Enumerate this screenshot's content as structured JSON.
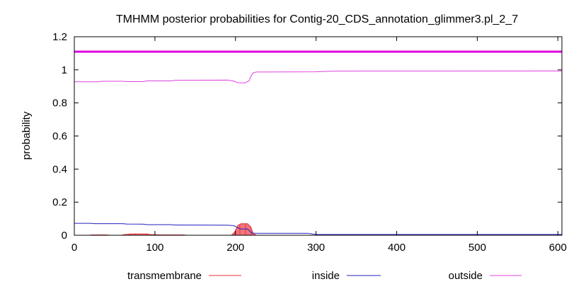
{
  "chart_data": {
    "type": "line",
    "title": "TMHMM posterior probabilities for Contig-20_CDS_annotation_glimmer3.pl_2_7",
    "xlabel": "",
    "ylabel": "probability",
    "xlim": [
      0,
      605
    ],
    "ylim": [
      0,
      1.2
    ],
    "x_ticks": [
      0,
      100,
      200,
      300,
      400,
      500,
      600
    ],
    "x_tick_labels": [
      "0",
      "100",
      "200",
      "300",
      "400",
      "500",
      "600"
    ],
    "y_ticks": [
      0,
      0.2,
      0.4,
      0.6,
      0.8,
      1,
      1.2
    ],
    "y_tick_labels": [
      "0",
      "0.2",
      "0.4",
      "0.6",
      "0.8",
      "1",
      "1.2"
    ],
    "grid": false,
    "legend_position": "bottom",
    "overlay_band": {
      "y": 1.11,
      "color": "#e000e0"
    },
    "series": [
      {
        "name": "transmembrane",
        "color": "#e8303a",
        "style": "filled-impulses",
        "points": [
          [
            0,
            0
          ],
          [
            18,
            0
          ],
          [
            22,
            0.002
          ],
          [
            40,
            0.002
          ],
          [
            45,
            0
          ],
          [
            58,
            0
          ],
          [
            62,
            0.004
          ],
          [
            70,
            0.008
          ],
          [
            90,
            0.008
          ],
          [
            95,
            0.004
          ],
          [
            110,
            0.002
          ],
          [
            135,
            0.002
          ],
          [
            140,
            0
          ],
          [
            195,
            0
          ],
          [
            199,
            0.02
          ],
          [
            203,
            0.06
          ],
          [
            207,
            0.07
          ],
          [
            215,
            0.07
          ],
          [
            219,
            0.05
          ],
          [
            222,
            0.01
          ],
          [
            226,
            0
          ],
          [
            605,
            0
          ]
        ]
      },
      {
        "name": "inside",
        "color": "#2020c0",
        "style": "line",
        "points": [
          [
            0,
            0.072
          ],
          [
            20,
            0.072
          ],
          [
            25,
            0.07
          ],
          [
            60,
            0.07
          ],
          [
            65,
            0.068
          ],
          [
            85,
            0.067
          ],
          [
            90,
            0.064
          ],
          [
            120,
            0.064
          ],
          [
            125,
            0.062
          ],
          [
            190,
            0.061
          ],
          [
            198,
            0.058
          ],
          [
            202,
            0.048
          ],
          [
            206,
            0.038
          ],
          [
            215,
            0.038
          ],
          [
            220,
            0.014
          ],
          [
            225,
            0.012
          ],
          [
            240,
            0.012
          ],
          [
            290,
            0.012
          ],
          [
            295,
            0.008
          ],
          [
            300,
            0.005
          ],
          [
            605,
            0.005
          ]
        ]
      },
      {
        "name": "outside",
        "color": "#e040e0",
        "style": "line",
        "points": [
          [
            0,
            0.928
          ],
          [
            30,
            0.928
          ],
          [
            35,
            0.931
          ],
          [
            60,
            0.931
          ],
          [
            65,
            0.929
          ],
          [
            85,
            0.929
          ],
          [
            90,
            0.933
          ],
          [
            120,
            0.933
          ],
          [
            125,
            0.937
          ],
          [
            190,
            0.938
          ],
          [
            198,
            0.932
          ],
          [
            203,
            0.922
          ],
          [
            212,
            0.921
          ],
          [
            217,
            0.935
          ],
          [
            219,
            0.96
          ],
          [
            222,
            0.982
          ],
          [
            226,
            0.987
          ],
          [
            300,
            0.988
          ],
          [
            310,
            0.99
          ],
          [
            320,
            0.992
          ],
          [
            605,
            0.993
          ]
        ]
      }
    ]
  }
}
